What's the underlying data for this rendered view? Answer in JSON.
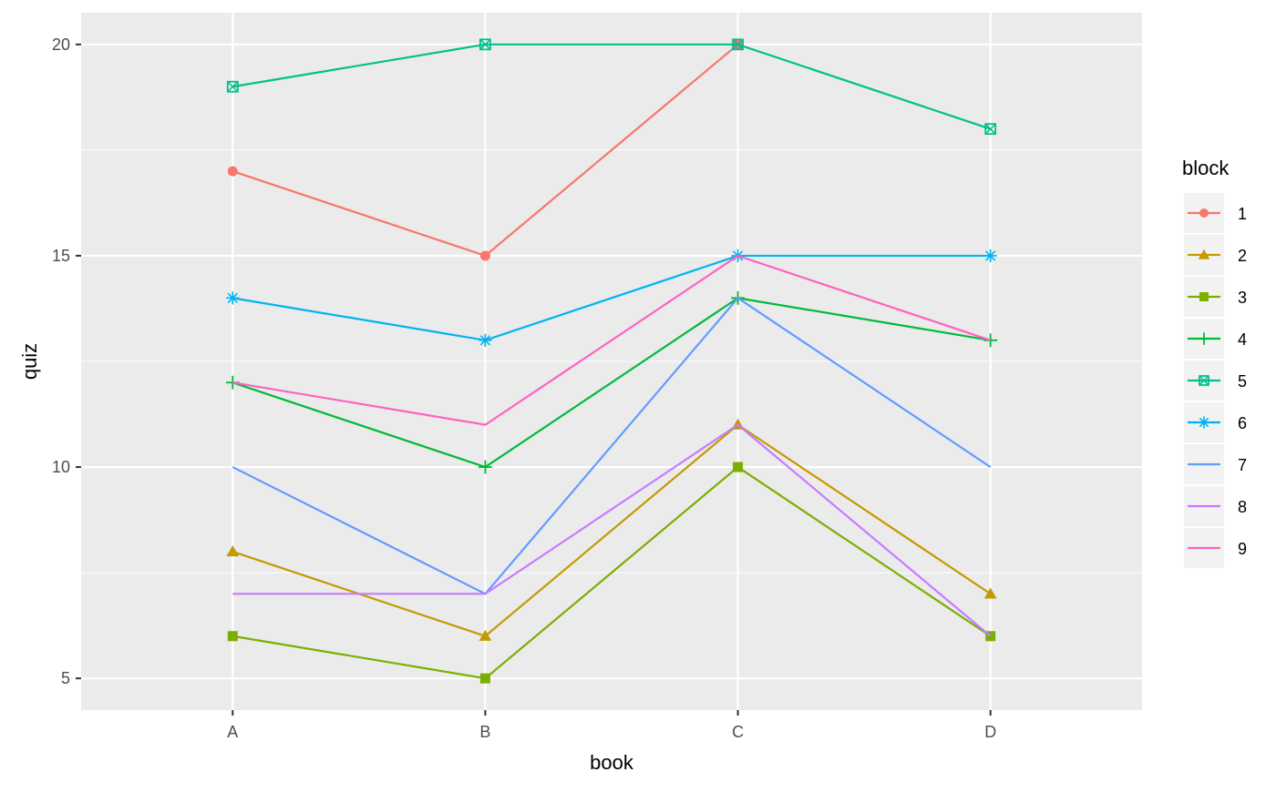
{
  "chart_data": {
    "type": "line",
    "categories": [
      "A",
      "B",
      "C",
      "D"
    ],
    "xlabel": "book",
    "ylabel": "quiz",
    "ylim": [
      4.25,
      20.75
    ],
    "yticks": [
      5,
      10,
      15,
      20
    ],
    "grid": true,
    "legend": {
      "title": "block",
      "placement": "right"
    },
    "series": [
      {
        "name": "1",
        "color": "#F8766D",
        "shape": "circle",
        "values": [
          17,
          15,
          20,
          null
        ]
      },
      {
        "name": "2",
        "color": "#C49A00",
        "shape": "triangle",
        "values": [
          8,
          6,
          11,
          7
        ]
      },
      {
        "name": "3",
        "color": "#7CAE00",
        "shape": "square",
        "values": [
          6,
          5,
          10,
          6
        ]
      },
      {
        "name": "4",
        "color": "#00BA38",
        "shape": "plus",
        "values": [
          12,
          10,
          14,
          13
        ]
      },
      {
        "name": "5",
        "color": "#00C08B",
        "shape": "square-x",
        "values": [
          19,
          20,
          20,
          18
        ]
      },
      {
        "name": "6",
        "color": "#00B4EF",
        "shape": "asterisk",
        "values": [
          14,
          13,
          15,
          15
        ]
      },
      {
        "name": "7",
        "color": "#619CFF",
        "shape": "none",
        "values": [
          10,
          7,
          14,
          10
        ]
      },
      {
        "name": "8",
        "color": "#C77CFF",
        "shape": "none",
        "values": [
          7,
          7,
          11,
          6
        ]
      },
      {
        "name": "9",
        "color": "#FF61C3",
        "shape": "none",
        "values": [
          12,
          11,
          15,
          13
        ]
      }
    ]
  }
}
